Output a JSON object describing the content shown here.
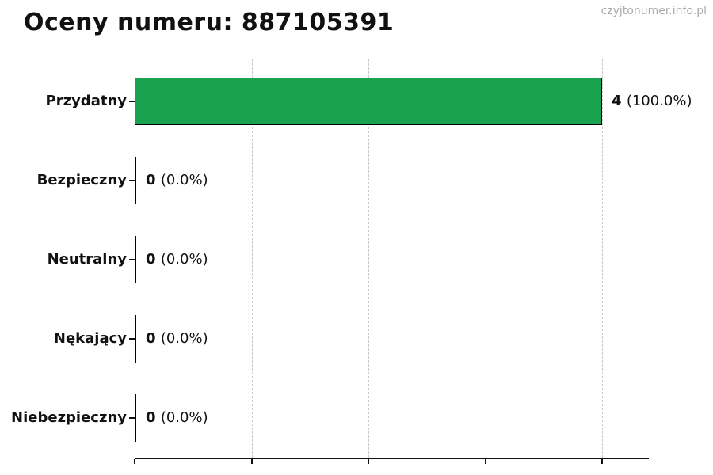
{
  "page": {
    "watermark": "czyjtonumer.info.pl"
  },
  "chart_data": {
    "type": "bar",
    "orientation": "horizontal",
    "title": "Oceny numeru: 887105391",
    "xlabel": "",
    "ylabel": "",
    "categories": [
      "Przydatny",
      "Bezpieczny",
      "Neutralny",
      "Nękający",
      "Niebezpieczny"
    ],
    "values": [
      4,
      0,
      0,
      0,
      0
    ],
    "count_labels": [
      "4",
      "0",
      "0",
      "0",
      "0"
    ],
    "percent_labels": [
      "(100.0%)",
      "(0.0%)",
      "(0.0%)",
      "(0.0%)",
      "(0.0%)"
    ],
    "xlim": [
      0,
      4.4
    ],
    "x_ticks": [
      0,
      1,
      2,
      3,
      4
    ],
    "x_tick_labels_shown": false,
    "grid": "dashed-vertical",
    "legend": "none",
    "bar_color": "#1aa34f",
    "bar_edge_color": "#000000",
    "grid_color": "#c9c9c9",
    "background": "#ffffff",
    "watermark": "czyjtonumer.info.pl"
  }
}
